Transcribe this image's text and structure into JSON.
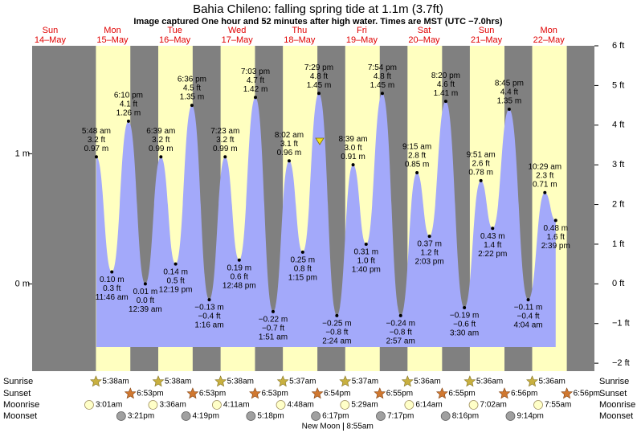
{
  "chart_data": {
    "type": "tide",
    "title": "Bahia Chileno: falling  spring tide at 1.1m (3.7ft)",
    "subtitle": "Image captured One hour and 52 minutes after high water. Times are MST (UTC −7.0hrs)",
    "ylim": [
      -2.2,
      6
    ],
    "yticks": [
      {
        "value": 6,
        "label": "6 ft"
      },
      {
        "value": 5,
        "label": "5 ft"
      },
      {
        "value": 4,
        "label": "4 ft"
      },
      {
        "value": 3,
        "label": "3 ft"
      },
      {
        "value": 2,
        "label": "2 ft"
      },
      {
        "value": 1,
        "label": "1 ft"
      },
      {
        "value": 0,
        "label": "0 ft"
      },
      {
        "value": -1,
        "label": "−1 ft"
      },
      {
        "value": -2,
        "label": "−2 ft"
      }
    ],
    "y2lim": [
      -0.67,
      1.829
    ],
    "y2ticks": [
      {
        "value": 1,
        "label": "1 m"
      },
      {
        "value": 0,
        "label": "0 m"
      }
    ],
    "colors": {
      "night": "#808080",
      "day": "#ffffc0",
      "water": "#a3a9fa",
      "day_label": "#e00000"
    },
    "row_labels": {
      "sunrise": "Sunrise",
      "sunset": "Sunset",
      "moonrise": "Moonrise",
      "moonset": "Moonset"
    },
    "days": [
      {
        "weekday": "Sun",
        "date": "14–May"
      },
      {
        "weekday": "Mon",
        "date": "15–May",
        "sunrise": "5:38am",
        "sunset": "6:53pm",
        "moonrise": "3:01am",
        "moonset": "3:21pm",
        "tides": [
          {
            "time": "5:48 am",
            "ft": 3.2,
            "ft_label": "3.2 ft",
            "m_label": "0.97 m"
          },
          {
            "time": "11:46 am",
            "ft": 0.3,
            "ft_label": "0.3 ft",
            "m_label": "0.10 m"
          },
          {
            "time": "6:10 pm",
            "ft": 4.1,
            "ft_label": "4.1 ft",
            "m_label": "1.26 m"
          }
        ]
      },
      {
        "weekday": "Tue",
        "date": "16–May",
        "sunrise": "5:38am",
        "sunset": "6:53pm",
        "moonrise": "3:36am",
        "moonset": "4:19pm",
        "tides": [
          {
            "time": "12:39 am",
            "ft": 0.0,
            "ft_label": "0.0 ft",
            "m_label": "0.01 m"
          },
          {
            "time": "6:39 am",
            "ft": 3.2,
            "ft_label": "3.2 ft",
            "m_label": "0.99 m"
          },
          {
            "time": "12:19 pm",
            "ft": 0.5,
            "ft_label": "0.5 ft",
            "m_label": "0.14 m"
          },
          {
            "time": "6:36 pm",
            "ft": 4.5,
            "ft_label": "4.5 ft",
            "m_label": "1.35 m"
          }
        ]
      },
      {
        "weekday": "Wed",
        "date": "17–May",
        "sunrise": "5:38am",
        "sunset": "6:53pm",
        "moonrise": "4:11am",
        "moonset": "5:18pm",
        "tides": [
          {
            "time": "1:16 am",
            "ft": -0.4,
            "ft_label": "−0.4 ft",
            "m_label": "−0.13 m"
          },
          {
            "time": "7:23 am",
            "ft": 3.2,
            "ft_label": "3.2 ft",
            "m_label": "0.99 m"
          },
          {
            "time": "12:48 pm",
            "ft": 0.6,
            "ft_label": "0.6 ft",
            "m_label": "0.19 m"
          },
          {
            "time": "7:03 pm",
            "ft": 4.7,
            "ft_label": "4.7 ft",
            "m_label": "1.42 m"
          }
        ]
      },
      {
        "weekday": "Thu",
        "date": "18–May",
        "sunrise": "5:37am",
        "sunset": "6:54pm",
        "moonrise": "4:48am",
        "moonset": "6:17pm",
        "tides": [
          {
            "time": "1:51 am",
            "ft": -0.7,
            "ft_label": "−0.7 ft",
            "m_label": "−0.22 m"
          },
          {
            "time": "8:02 am",
            "ft": 3.1,
            "ft_label": "3.1 ft",
            "m_label": "0.96 m"
          },
          {
            "time": "1:15 pm",
            "ft": 0.8,
            "ft_label": "0.8 ft",
            "m_label": "0.25 m"
          },
          {
            "time": "7:29 pm",
            "ft": 4.8,
            "ft_label": "4.8 ft",
            "m_label": "1.45 m"
          }
        ]
      },
      {
        "weekday": "Fri",
        "date": "19–May",
        "sunrise": "5:37am",
        "sunset": "6:55pm",
        "moonrise": "5:29am",
        "moonset": "7:17pm",
        "moon_phase": {
          "label": "New Moon",
          "time": "8:55am"
        },
        "tides": [
          {
            "time": "2:24 am",
            "ft": -0.8,
            "ft_label": "−0.8 ft",
            "m_label": "−0.25 m"
          },
          {
            "time": "8:39 am",
            "ft": 3.0,
            "ft_label": "3.0 ft",
            "m_label": "0.91 m"
          },
          {
            "time": "1:40 pm",
            "ft": 1.0,
            "ft_label": "1.0 ft",
            "m_label": "0.31 m"
          },
          {
            "time": "7:54 pm",
            "ft": 4.8,
            "ft_label": "4.8 ft",
            "m_label": "1.45 m"
          }
        ]
      },
      {
        "weekday": "Sat",
        "date": "20–May",
        "sunrise": "5:36am",
        "sunset": "6:55pm",
        "moonrise": "6:14am",
        "moonset": "8:16pm",
        "tides": [
          {
            "time": "2:57 am",
            "ft": -0.8,
            "ft_label": "−0.8 ft",
            "m_label": "−0.24 m"
          },
          {
            "time": "9:15 am",
            "ft": 2.8,
            "ft_label": "2.8 ft",
            "m_label": "0.85 m"
          },
          {
            "time": "2:03 pm",
            "ft": 1.2,
            "ft_label": "1.2 ft",
            "m_label": "0.37 m"
          },
          {
            "time": "8:20 pm",
            "ft": 4.6,
            "ft_label": "4.6 ft",
            "m_label": "1.41 m"
          }
        ]
      },
      {
        "weekday": "Sun",
        "date": "21–May",
        "sunrise": "5:36am",
        "sunset": "6:56pm",
        "moonrise": "7:02am",
        "moonset": "9:14pm",
        "tides": [
          {
            "time": "3:30 am",
            "ft": -0.6,
            "ft_label": "−0.6 ft",
            "m_label": "−0.19 m"
          },
          {
            "time": "9:51 am",
            "ft": 2.6,
            "ft_label": "2.6 ft",
            "m_label": "0.78 m"
          },
          {
            "time": "2:22 pm",
            "ft": 1.4,
            "ft_label": "1.4 ft",
            "m_label": "0.43 m"
          },
          {
            "time": "8:45 pm",
            "ft": 4.4,
            "ft_label": "4.4 ft",
            "m_label": "1.35 m"
          }
        ]
      },
      {
        "weekday": "Mon",
        "date": "22–May",
        "sunrise": "5:36am",
        "sunset": "6:56pm",
        "moonrise": "7:55am",
        "tides": [
          {
            "time": "4:04 am",
            "ft": -0.4,
            "ft_label": "−0.4 ft",
            "m_label": "−0.11 m"
          },
          {
            "time": "10:29 am",
            "ft": 2.3,
            "ft_label": "2.3 ft",
            "m_label": "0.71 m"
          },
          {
            "time": "2:39 pm",
            "ft": 1.6,
            "ft_label": "1.6 ft",
            "m_label": "0.48 m"
          }
        ]
      }
    ]
  }
}
